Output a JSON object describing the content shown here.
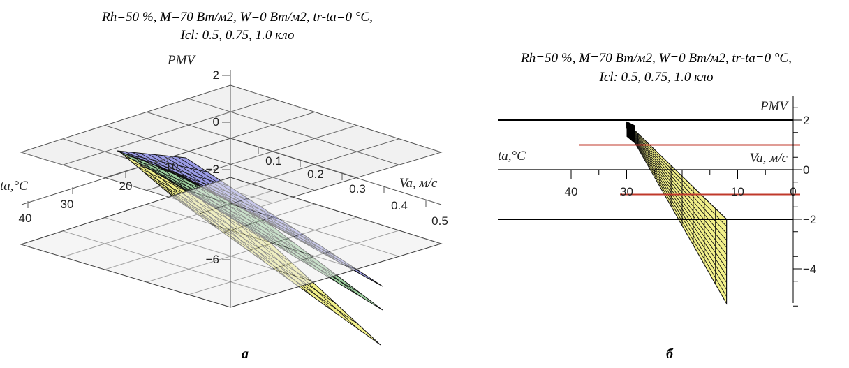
{
  "chart_data": [
    {
      "panel": "a",
      "type": "surface3d",
      "title_line1": "Rh=50 %, M=70 Вт/м2, W=0 Вт/м2, tr-ta=0 °C,",
      "title_line2": "Icl:  0.5, 0.75, 1.0 кло",
      "x_label": "ta,°C",
      "y_label": "Va, м/с",
      "z_label": "PMV",
      "x_ticks": [
        "40",
        "30",
        "20",
        "10"
      ],
      "y_ticks": [
        "0.1",
        "0.2",
        "0.3",
        "0.4",
        "0.5"
      ],
      "z_ticks": [
        "2",
        "0",
        "−2",
        "−6"
      ],
      "xlim": [
        10,
        40
      ],
      "ylim": [
        0,
        0.5
      ],
      "zlim": [
        -6,
        2
      ],
      "reference_planes_pmv": [
        0,
        -2
      ],
      "series": [
        {
          "label": "Icl = 0.5 кло",
          "color": "#f2f08a",
          "pmv_corner_min": -6.5
        },
        {
          "label": "Icl = 0.75 кло",
          "color": "#9ccf9e",
          "pmv_corner_min": -5.5
        },
        {
          "label": "Icl = 1.0 кло",
          "color": "#9a9be6",
          "pmv_corner_min": -4.6
        }
      ]
    },
    {
      "panel": "б",
      "type": "surface_projection",
      "title_line1": "Rh=50 %, M=70 Вт/м2, W=0 Вт/м2, tr-ta=0 °C,",
      "title_line2": "Icl:  0.5, 0.75, 1.0 кло",
      "x_label": "ta,°C",
      "y_label": "Va, м/с",
      "z_label": "PMV",
      "x_ticks": [
        "40",
        "30",
        "10",
        "0"
      ],
      "z_ticks": [
        "2",
        "0",
        "−2",
        "−4"
      ],
      "zlim": [
        -5.5,
        2.5
      ],
      "black_lines_pmv": [
        2,
        -2
      ],
      "red_lines_pmv": [
        1,
        -1
      ],
      "series": [
        {
          "label": "Icl = 1.0 кло",
          "color": "#9a9be6",
          "pmv_at_ta_min": -2.8
        },
        {
          "label": "Icl = 0.75 кло",
          "color": "#9ccf9e",
          "pmv_at_ta_min": -3.8
        },
        {
          "label": "Icl = 0.5 кло",
          "color": "#f2f08a",
          "pmv_at_ta_min": -5.4
        }
      ],
      "pmv_at_ta_max": 1.9,
      "ta_range": [
        12,
        30
      ]
    }
  ]
}
